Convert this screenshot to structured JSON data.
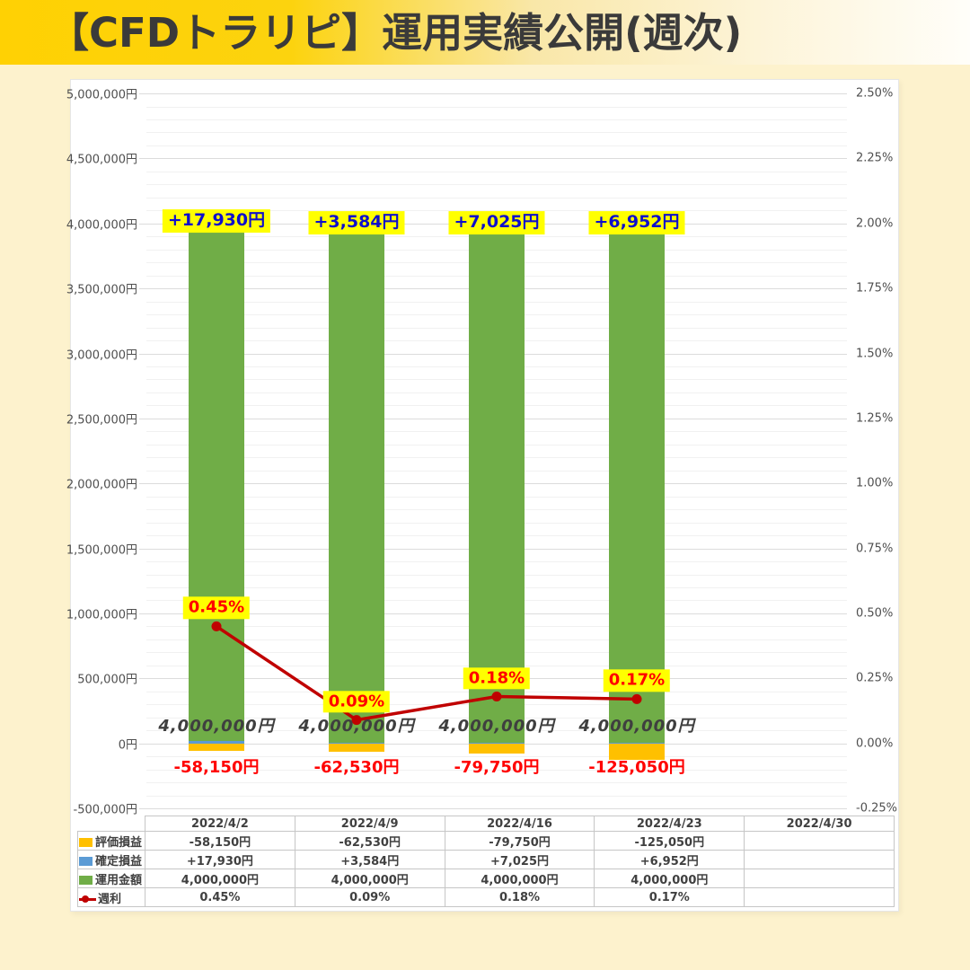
{
  "title": "【CFDトラリピ】運用実績公開(週次)",
  "colors": {
    "header_gradient_start": "#FFD103",
    "header_gradient_end": "#FFFEF9",
    "page_background": "#FDF2CD",
    "card_background": "#FFFFFF",
    "grid_major": "#DCDCDC",
    "grid_minor": "#F1F1F1",
    "eval_pl_bar": "#FFC000",
    "realized_pl_bar": "#5B9BD5",
    "principal_bar": "#70AD47",
    "weekly_rate_line": "#C00000",
    "highlight_yellow": "#FFFF00",
    "profit_text_blue": "#0F0FCB",
    "loss_text_red": "#FF0000",
    "axis_text": "#4F4F4F",
    "table_text": "#404040"
  },
  "chart_data": {
    "type": "bar",
    "subtype": "stacked-bar-with-line-combo",
    "title": "【CFDトラリピ】運用実績公開(週次)",
    "grid": true,
    "legend_position": "table-left",
    "categories": [
      "2022/4/2",
      "2022/4/9",
      "2022/4/16",
      "2022/4/23",
      "2022/4/30"
    ],
    "series": [
      {
        "name": "評価損益",
        "key": "eval-pl",
        "chart": "bar",
        "stacked": true,
        "axis": "left",
        "color": "#FFC000",
        "values": [
          -58150,
          -62530,
          -79750,
          -125050,
          null
        ],
        "labels": [
          "-58,150円",
          "-62,530円",
          "-79,750円",
          "-125,050円",
          ""
        ]
      },
      {
        "name": "確定損益",
        "key": "realized-pl",
        "chart": "bar",
        "stacked": true,
        "axis": "left",
        "color": "#5B9BD5",
        "values": [
          17930,
          3584,
          7025,
          6952,
          null
        ],
        "labels": [
          "+17,930円",
          "+3,584円",
          "+7,025円",
          "+6,952円",
          ""
        ]
      },
      {
        "name": "運用金額",
        "key": "principal",
        "chart": "bar",
        "stacked": true,
        "axis": "left",
        "color": "#70AD47",
        "values": [
          4000000,
          4000000,
          4000000,
          4000000,
          null
        ],
        "labels": [
          "4,000,000円",
          "4,000,000円",
          "4,000,000円",
          "4,000,000円",
          ""
        ]
      },
      {
        "name": "週利",
        "key": "weekly-rate",
        "chart": "line",
        "axis": "right",
        "color": "#C00000",
        "values": [
          0.45,
          0.09,
          0.18,
          0.17,
          null
        ],
        "labels": [
          "0.45%",
          "0.09%",
          "0.18%",
          "0.17%",
          ""
        ]
      }
    ],
    "left_axis": {
      "min": -500000,
      "max": 5000000,
      "major_step": 500000,
      "minor_step": 100000,
      "labels": [
        "5,000,000円",
        "4,500,000円",
        "4,000,000円",
        "3,500,000円",
        "3,000,000円",
        "2,500,000円",
        "2,000,000円",
        "1,500,000円",
        "1,000,000円",
        "500,000円",
        "0円",
        "-500,000円"
      ]
    },
    "right_axis": {
      "min": -0.25,
      "max": 2.5,
      "major_step": 0.25,
      "labels": [
        "2.50%",
        "2.25%",
        "2.00%",
        "1.75%",
        "1.50%",
        "1.25%",
        "1.00%",
        "0.75%",
        "0.50%",
        "0.25%",
        "0.00%",
        "-0.25%"
      ]
    }
  },
  "table": {
    "columns": [
      "2022/4/2",
      "2022/4/9",
      "2022/4/16",
      "2022/4/23",
      "2022/4/30"
    ],
    "rows": [
      {
        "label": "評価損益",
        "marker": "square",
        "color": "#FFC000",
        "cells": [
          "-58,150円",
          "-62,530円",
          "-79,750円",
          "-125,050円",
          ""
        ]
      },
      {
        "label": "確定損益",
        "marker": "square",
        "color": "#5B9BD5",
        "cells": [
          "+17,930円",
          "+3,584円",
          "+7,025円",
          "+6,952円",
          ""
        ]
      },
      {
        "label": "運用金額",
        "marker": "square",
        "color": "#70AD47",
        "cells": [
          "4,000,000円",
          "4,000,000円",
          "4,000,000円",
          "4,000,000円",
          ""
        ]
      },
      {
        "label": "週利",
        "marker": "line-dot",
        "color": "#C00000",
        "cells": [
          "0.45%",
          "0.09%",
          "0.18%",
          "0.17%",
          ""
        ]
      }
    ]
  }
}
